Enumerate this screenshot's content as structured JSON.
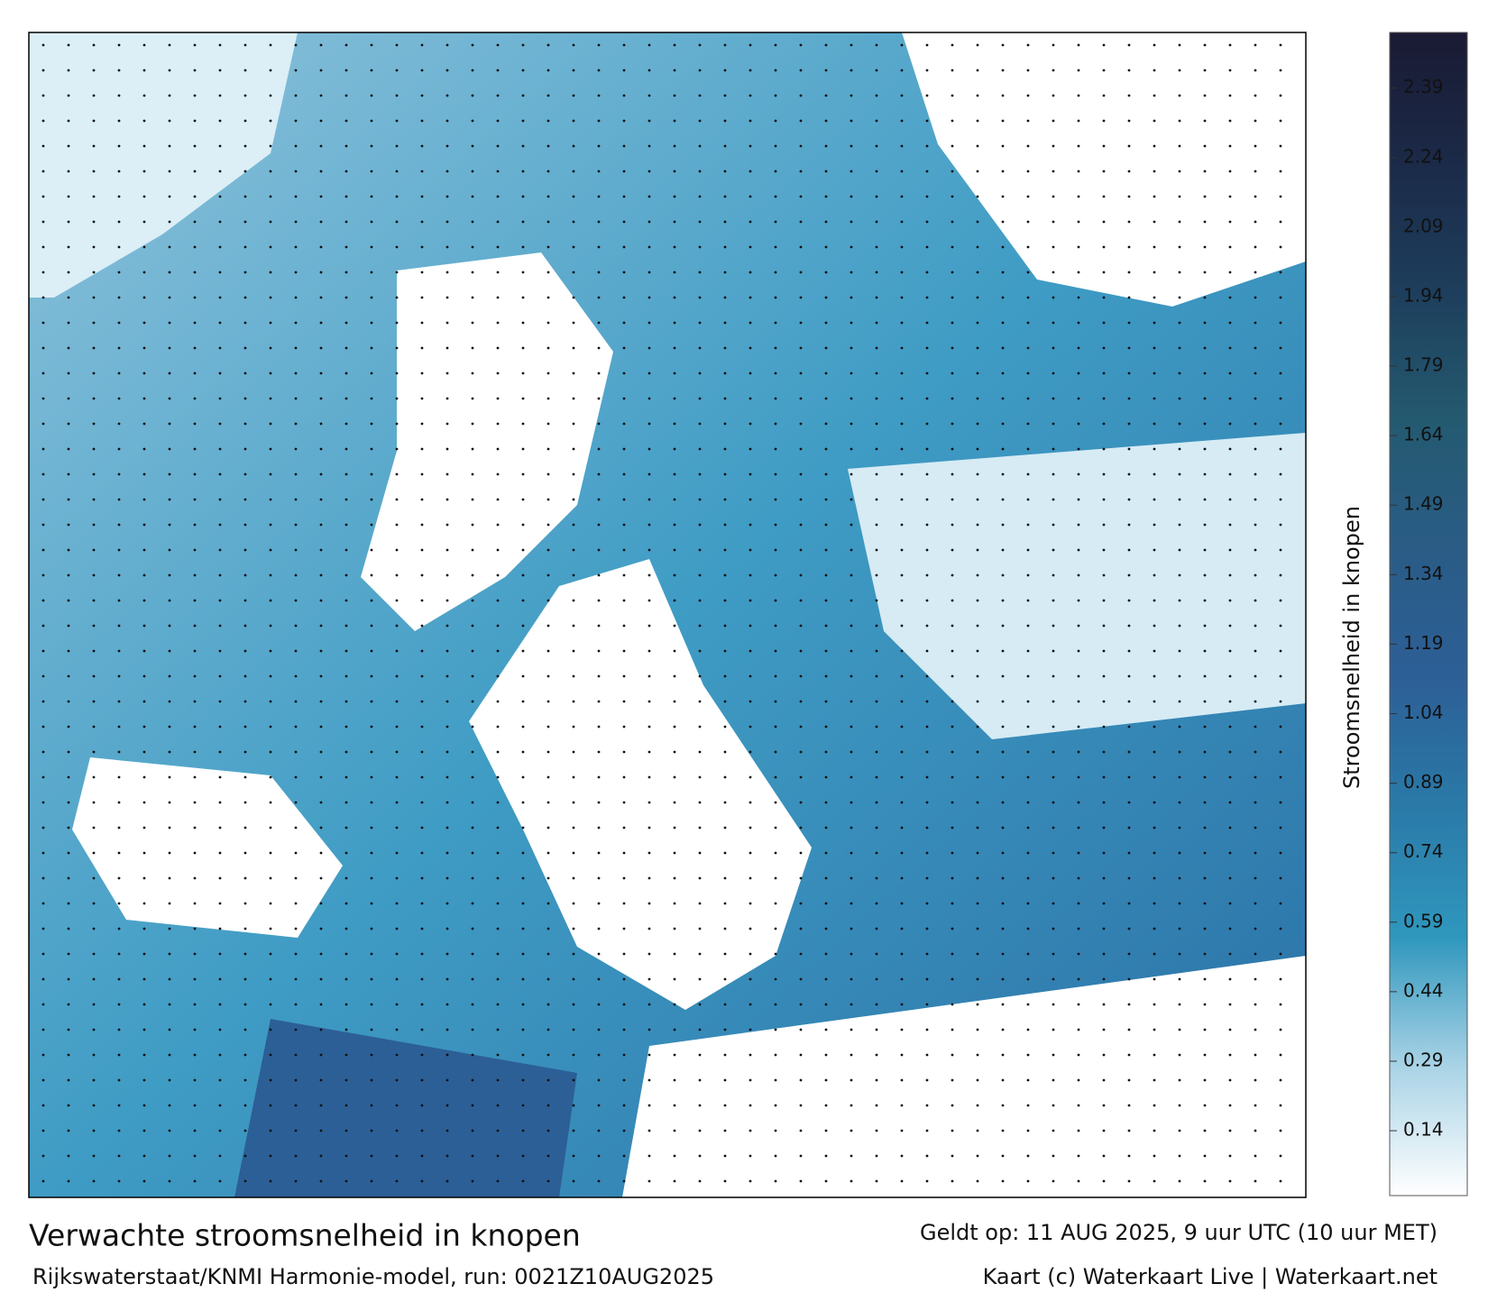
{
  "title": "Verwachte stroomsnelheid in knopen",
  "valid_time": "Geldt op: 11 AUG 2025, 9 uur UTC (10 uur MET)",
  "source": "Rijkswaterstaat/KNMI Harmonie-model, run: 0021Z10AUG2025",
  "credit": "Kaart (c) Waterkaart Live | Waterkaart.net",
  "colorbar": {
    "label": "Stroomsnelheid in knopen",
    "range": [
      0,
      2.51
    ],
    "ticks": [
      0.14,
      0.29,
      0.44,
      0.59,
      0.74,
      0.89,
      1.04,
      1.19,
      1.34,
      1.49,
      1.64,
      1.79,
      1.94,
      2.09,
      2.24,
      2.39
    ],
    "colors": [
      "#ffffff",
      "#a9d3e6",
      "#2f97bd",
      "#2a7aa8",
      "#2c5f96",
      "#2a5c86",
      "#245a70",
      "#1d3e5c",
      "#1b2a48",
      "#1a1a33"
    ]
  }
}
